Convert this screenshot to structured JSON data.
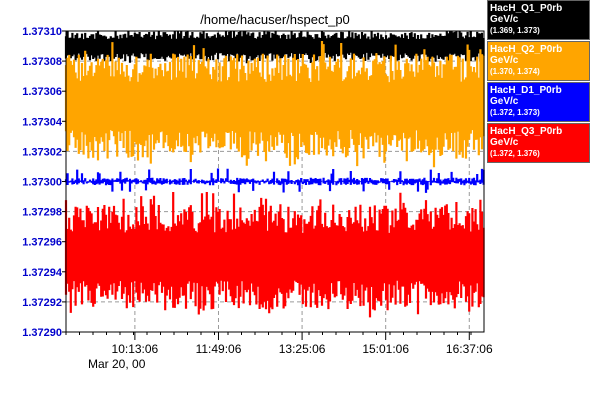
{
  "chart_data": {
    "type": "line",
    "title": "/home/hacuser/hspect_p0",
    "xlabel": "",
    "ylabel": "",
    "date_label": "Mar 20, 00",
    "x_ticks": [
      "10:13:06",
      "11:49:06",
      "13:25:06",
      "15:01:06",
      "16:37:06"
    ],
    "x_range": [
      "08:54:00",
      "16:54:00"
    ],
    "ylim": [
      1.3729,
      1.3731
    ],
    "y_ticks": [
      "1.37290",
      "1.37292",
      "1.37294",
      "1.37296",
      "1.37298",
      "1.37300",
      "1.37302",
      "1.37304",
      "1.37306",
      "1.37308",
      "1.37310"
    ],
    "grid": true,
    "legend_position": "right",
    "series": [
      {
        "name": "HacH_Q1_P0rb",
        "unit": "GeV/c",
        "range_label": "(1.369, 1.373)",
        "color": "#000000",
        "text_color": "#ffffff",
        "band": [
          1.37308,
          1.3731
        ],
        "typical": 1.37309
      },
      {
        "name": "HacH_Q2_P0rb",
        "unit": "GeV/c",
        "range_label": "(1.370, 1.374)",
        "color": "#ffa500",
        "text_color": "#ffffff",
        "band": [
          1.373015,
          1.373085
        ],
        "typical": 1.37305
      },
      {
        "name": "HacH_D1_P0rb",
        "unit": "GeV/c",
        "range_label": "(1.372, 1.373)",
        "color": "#0000ff",
        "text_color": "#ffffff",
        "band": [
          1.372995,
          1.373005
        ],
        "typical": 1.373
      },
      {
        "name": "HacH_Q3_P0rb",
        "unit": "GeV/c",
        "range_label": "(1.372, 1.376)",
        "color": "#ff0000",
        "text_color": "#ffffff",
        "band": [
          1.372915,
          1.372985
        ],
        "typical": 1.37295
      }
    ]
  }
}
